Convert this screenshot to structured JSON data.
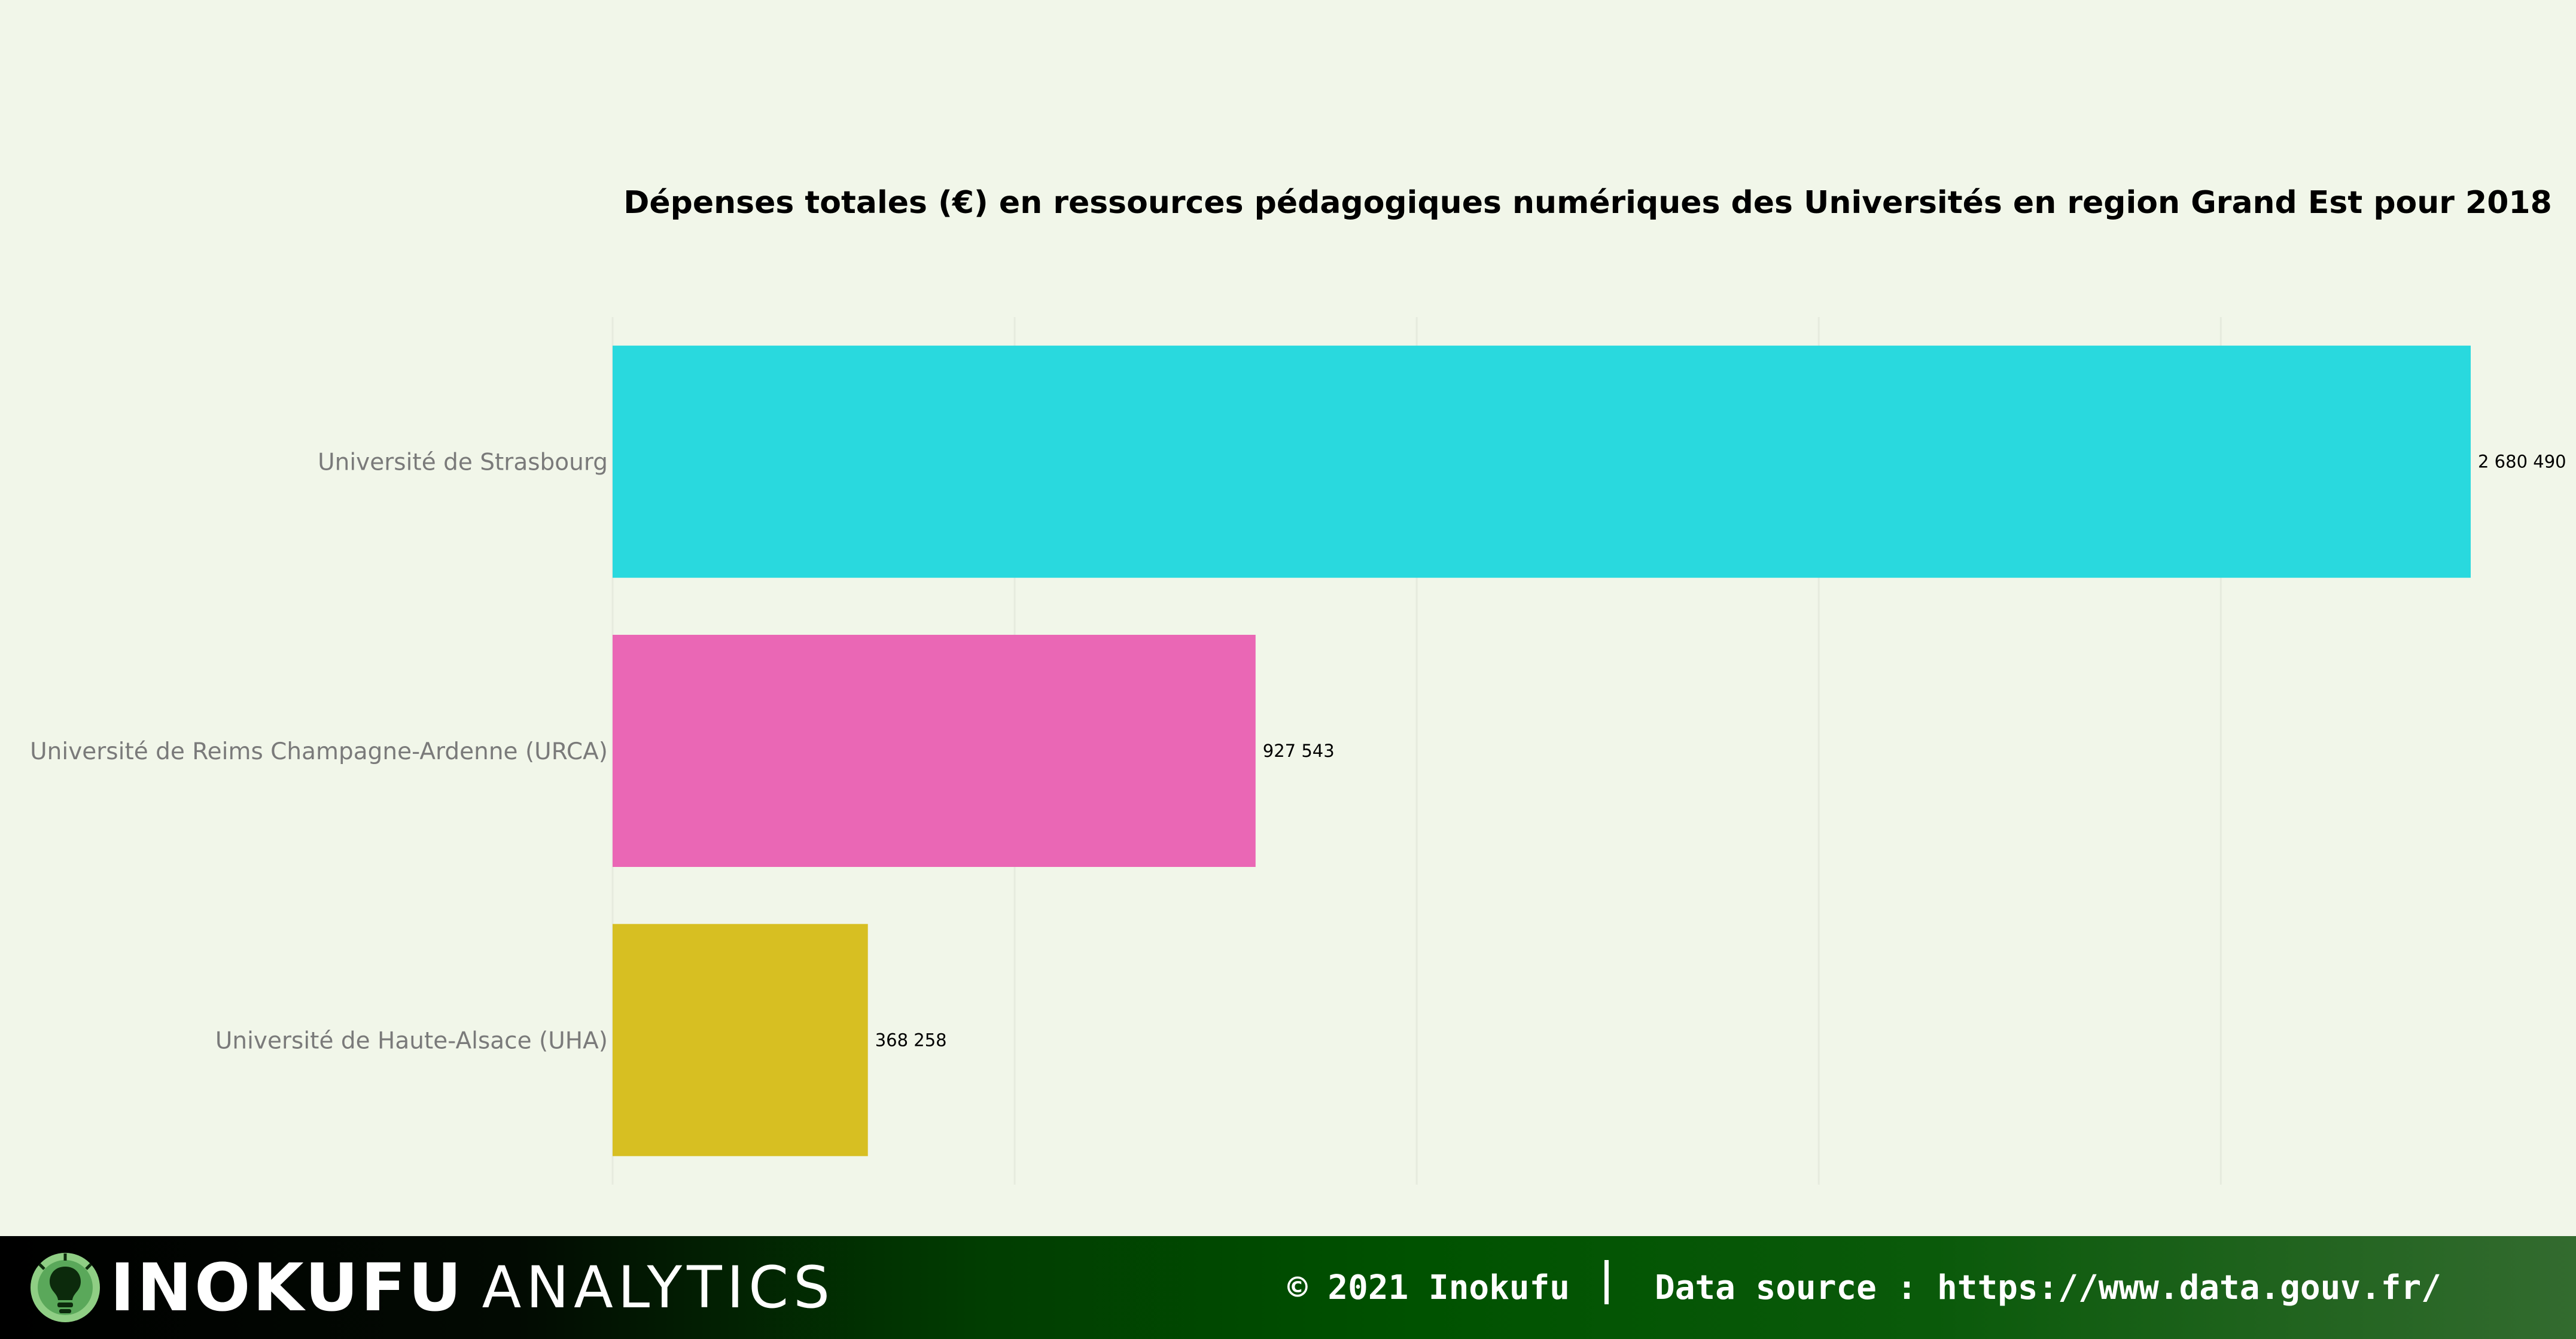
{
  "chart_data": {
    "type": "bar",
    "orientation": "horizontal",
    "title": "Dépenses totales (€) en ressources pédagogiques numériques des Universités en region Grand Est pour 2018",
    "xlabel": "",
    "ylabel": "",
    "categories": [
      "Université de Strasbourg",
      "Université de Reims Champagne-Ardenne (URCA)",
      "Université de Haute-Alsace (UHA)"
    ],
    "values": [
      2680490,
      927543,
      368258
    ],
    "value_labels": [
      "2 680 490",
      "927 543",
      "368 258"
    ],
    "colors": [
      "#29d9de",
      "#ea67b5",
      "#d7bf22"
    ],
    "xlim": [
      0,
      2680490
    ],
    "grid": true,
    "legend": "none"
  },
  "footer": {
    "brand_strong": "INOKUFU",
    "brand_light": "ANALYTICS",
    "copyright": "© 2021 Inokufu",
    "source": "Data source : https://www.data.gouv.fr/"
  },
  "colors": {
    "background": "#f1f6e9",
    "gridline": "#e6ebde",
    "footer_dark": "#000000",
    "footer_green": "#005200"
  }
}
